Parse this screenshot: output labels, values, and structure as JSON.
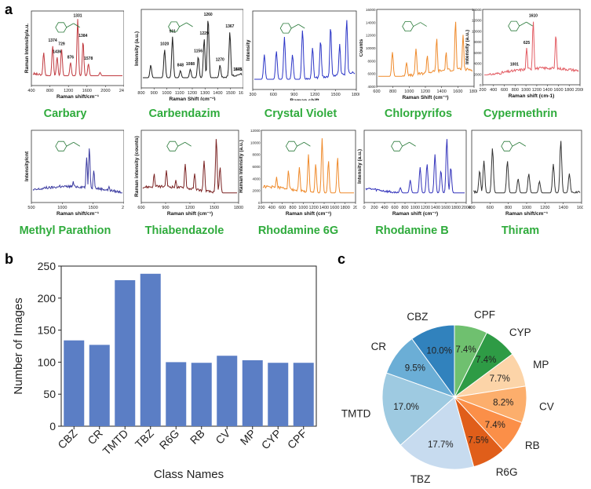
{
  "panels": {
    "a": "a",
    "b": "b",
    "c": "c"
  },
  "spectra": [
    {
      "name": "Carbary",
      "color": "#c0393f",
      "xlabel": "Raman shift/cm⁻¹",
      "ylabel": "Raman Intensity/a.u.",
      "xticks": [
        "400",
        "800",
        "1200",
        "1600",
        "2000",
        "2400"
      ],
      "peaks": [
        "1374",
        "1436",
        "729",
        "876",
        "1331",
        "1384",
        "1578"
      ]
    },
    {
      "name": "Carbendazim",
      "color": "#222222",
      "xlabel": "Raman Shift (cm⁻¹)",
      "ylabel": "Intensity (a.u.)",
      "xticks": [
        "800",
        "900",
        "1000",
        "1100",
        "1200",
        "1300",
        "1400",
        "1500",
        "1600"
      ],
      "peaks": [
        "1020",
        "961",
        "848",
        "1088",
        "1156",
        "1229",
        "1260",
        "1270",
        "1367",
        "1475",
        "1541"
      ]
    },
    {
      "name": "Crystal Violet",
      "color": "#2c36c7",
      "xlabel": "Raman shift",
      "ylabel": "Intensity",
      "xticks": [
        "300",
        "600",
        "900",
        "1200",
        "1500",
        "1800"
      ],
      "peaks": []
    },
    {
      "name": "Chlorpyrifos",
      "color": "#ef8a2b",
      "xlabel": "Raman Shift (cm⁻¹)",
      "ylabel": "Counts",
      "xticks": [
        "600",
        "800",
        "1000",
        "1200",
        "1400",
        "1600",
        "1800"
      ],
      "yticks": [
        "4000",
        "6000",
        "8000",
        "10000",
        "12000",
        "14000",
        "16000"
      ],
      "peaks": []
    },
    {
      "name": "Cypermethrin",
      "color": "#e35d64",
      "xlabel": "Raman shift (cm-1)",
      "ylabel": "Intensity (a.u.)",
      "xticks": [
        "200",
        "400",
        "600",
        "800",
        "1000",
        "1200",
        "1400",
        "1600",
        "1800",
        "2000"
      ],
      "yticks": [
        "0",
        "2000",
        "4000",
        "6000",
        "8000",
        "10000",
        "12000",
        "14000"
      ],
      "peaks": [
        "1001",
        "625",
        "1610"
      ]
    },
    {
      "name": "Methyl Parathion",
      "color": "#3a3aa0",
      "xlabel": "Raman shift/cm⁻¹",
      "ylabel": "Intensity/cnt",
      "xticks": [
        "500",
        "1000",
        "1500",
        "20"
      ],
      "peaks": []
    },
    {
      "name": "Thiabendazole",
      "color": "#7a2222",
      "xlabel": "Raman shift (cm⁻¹)",
      "ylabel": "Raman intensity (counts)",
      "xticks": [
        "600",
        "900",
        "1200",
        "1500",
        "1800"
      ],
      "peaks": []
    },
    {
      "name": "Rhodamine 6G",
      "color": "#ef8a2b",
      "xlabel": "Raman shift (cm⁻¹)",
      "ylabel": "Raman Intensity (a.u.)",
      "xticks": [
        "200",
        "400",
        "600",
        "800",
        "1000",
        "1200",
        "1400",
        "1600",
        "1800",
        "20"
      ],
      "yticks": [
        "0",
        "2000",
        "4000",
        "6000",
        "8000",
        "10000",
        "12000"
      ],
      "peaks": []
    },
    {
      "name": "Rhodamine B",
      "color": "#3333bb",
      "xlabel": "Raman shift (cm⁻¹)",
      "ylabel": "Intensity (a.u.)",
      "xticks": [
        "0",
        "200",
        "400",
        "600",
        "800",
        "1000",
        "1200",
        "1400",
        "1600",
        "1800",
        "2000"
      ],
      "peaks": []
    },
    {
      "name": "Thiram",
      "color": "#333333",
      "xlabel": "Raman shift/cm⁻¹",
      "ylabel": "",
      "xticks": [
        "400",
        "600",
        "800",
        "1000",
        "1200",
        "1400",
        "1600"
      ],
      "peaks": []
    }
  ],
  "chart_data": [
    {
      "type": "bar",
      "title": "",
      "xlabel": "Class Names",
      "ylabel": "Number of Images",
      "categories": [
        "CBZ",
        "CR",
        "TMTD",
        "TBZ",
        "R6G",
        "RB",
        "CV",
        "MP",
        "CYP",
        "CPF"
      ],
      "values": [
        134,
        127,
        228,
        238,
        100,
        99,
        110,
        103,
        99,
        99
      ],
      "ylim": [
        0,
        250
      ],
      "yticks": [
        "0",
        "50",
        "100",
        "150",
        "200",
        "250"
      ],
      "color": "#5b7ec5"
    },
    {
      "type": "pie",
      "labels": [
        "CPF",
        "CYP",
        "MP",
        "CV",
        "RB",
        "R6G",
        "TBZ",
        "TMTD",
        "CR",
        "CBZ"
      ],
      "values": [
        7.4,
        7.4,
        7.7,
        8.2,
        7.4,
        7.5,
        17.7,
        17.0,
        9.5,
        10.0
      ],
      "pct_labels": [
        "7.4%",
        "7.4%",
        "7.7%",
        "8.2%",
        "7.4%",
        "7.5%",
        "17.7%",
        "17.0%",
        "9.5%",
        "10.0%"
      ],
      "colors": [
        "#6fc06f",
        "#2e9b45",
        "#fcd4a8",
        "#fcae6c",
        "#fb8f48",
        "#e05e1a",
        "#c7dbef",
        "#9ecae1",
        "#6baed6",
        "#3182bd"
      ]
    }
  ]
}
